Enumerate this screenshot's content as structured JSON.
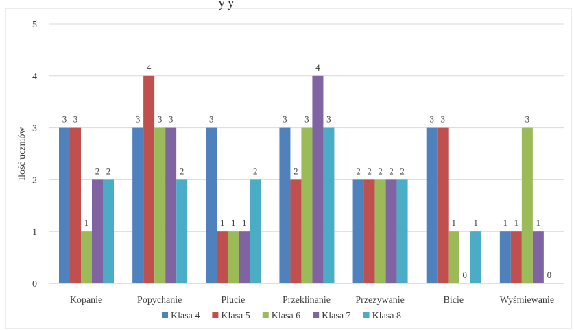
{
  "chart_data": {
    "type": "bar",
    "title": "",
    "top_text": "y y",
    "xlabel": "",
    "ylabel": "Ilość uczniów",
    "ylim": [
      0,
      5
    ],
    "yticks": [
      0,
      1,
      2,
      3,
      4,
      5
    ],
    "grid": true,
    "legend_position": "bottom",
    "categories": [
      "Kopanie",
      "Popychanie",
      "Plucie",
      "Przeklinanie",
      "Przezywanie",
      "Bicie",
      "Wyśmiewanie"
    ],
    "series": [
      {
        "name": "Klasa 4",
        "color": "#4F81BD",
        "values": [
          3,
          3,
          3,
          3,
          2,
          3,
          1
        ]
      },
      {
        "name": "Klasa 5",
        "color": "#C0504D",
        "values": [
          3,
          4,
          1,
          2,
          2,
          3,
          1
        ]
      },
      {
        "name": "Klasa 6",
        "color": "#9BBB59",
        "values": [
          1,
          3,
          1,
          3,
          2,
          1,
          3
        ]
      },
      {
        "name": "Klasa 7",
        "color": "#8064A2",
        "values": [
          2,
          3,
          1,
          4,
          2,
          0,
          1
        ]
      },
      {
        "name": "Klasa 8",
        "color": "#4BACC6",
        "values": [
          2,
          2,
          2,
          3,
          2,
          1,
          0
        ]
      }
    ]
  }
}
